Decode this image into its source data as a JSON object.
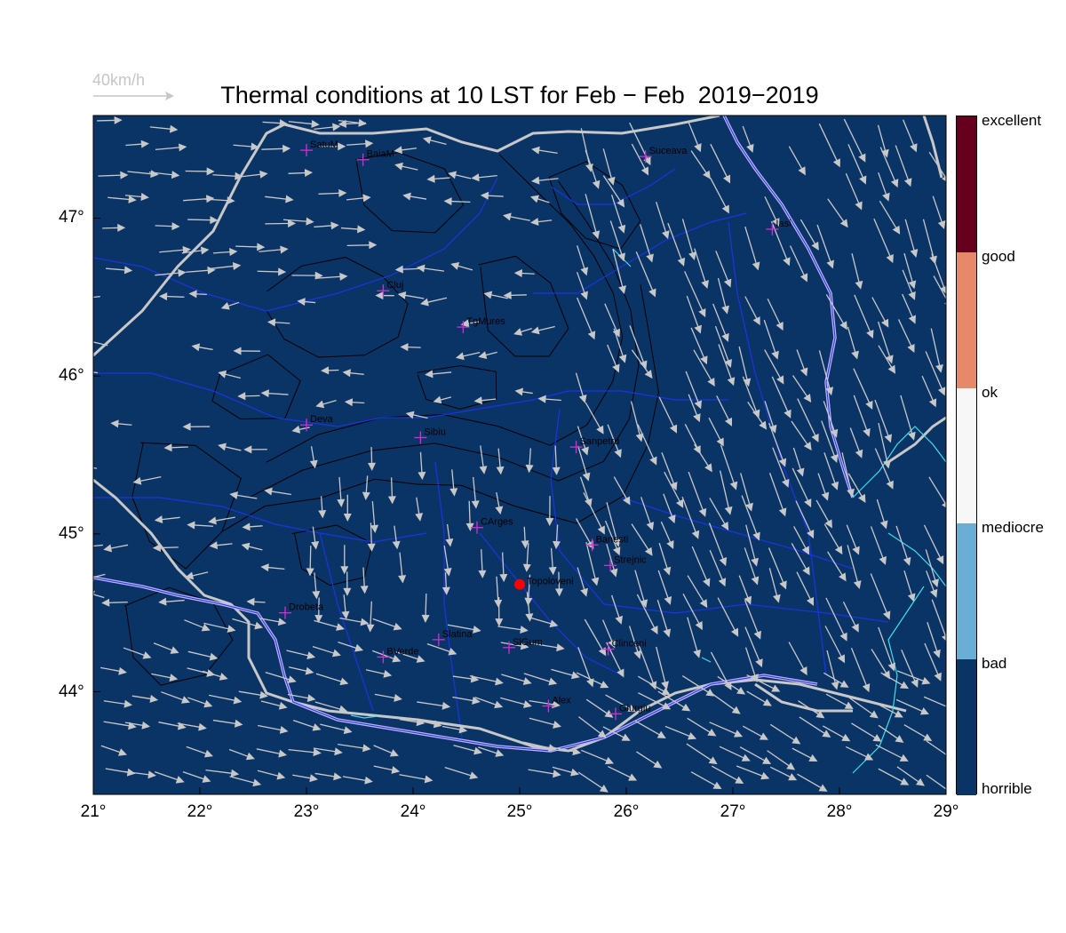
{
  "title": "Thermal conditions at 10 LST for Feb − Feb  2019−2019",
  "scale_label": "40km/h",
  "colors": {
    "background": "#0b3466",
    "rivers": "#1a34e0",
    "borders": "#c8c8c8",
    "contours": "#000000",
    "lakes": "#3ee0ee",
    "danube": "#c0b0ff",
    "wind_arrows": "#c8c8c8",
    "city_marker": "#cc33cc",
    "highlight": "#ff0000"
  },
  "map": {
    "lon_range": [
      21,
      29
    ],
    "lat_range": [
      43.35,
      47.65
    ],
    "lon_ticks": [
      "21°",
      "22°",
      "23°",
      "24°",
      "25°",
      "26°",
      "27°",
      "28°",
      "29°"
    ],
    "lat_ticks": [
      "44°",
      "45°",
      "46°",
      "47°"
    ],
    "cities": [
      {
        "name": "SatuM",
        "lon": 23.0,
        "lat": 47.43
      },
      {
        "name": "BaiaM",
        "lon": 23.53,
        "lat": 47.37
      },
      {
        "name": "Suceava",
        "lon": 26.18,
        "lat": 47.39
      },
      {
        "name": "Iasi",
        "lon": 27.37,
        "lat": 46.93
      },
      {
        "name": "Cluj",
        "lon": 23.72,
        "lat": 46.54
      },
      {
        "name": "TgMures",
        "lon": 24.47,
        "lat": 46.31
      },
      {
        "name": "Deva",
        "lon": 23.0,
        "lat": 45.69
      },
      {
        "name": "Sibiu",
        "lon": 24.07,
        "lat": 45.61
      },
      {
        "name": "Sanpetru",
        "lon": 25.53,
        "lat": 45.55
      },
      {
        "name": "CArges",
        "lon": 24.6,
        "lat": 45.04
      },
      {
        "name": "Banesti",
        "lon": 25.68,
        "lat": 44.93
      },
      {
        "name": "Strejnic",
        "lon": 25.85,
        "lat": 44.8
      },
      {
        "name": "Drobeta",
        "lon": 22.8,
        "lat": 44.5
      },
      {
        "name": "Slatina",
        "lon": 24.24,
        "lat": 44.33
      },
      {
        "name": "SlGum",
        "lon": 24.9,
        "lat": 44.28
      },
      {
        "name": "Clinceni",
        "lon": 25.83,
        "lat": 44.27
      },
      {
        "name": "BVerde",
        "lon": 23.72,
        "lat": 44.22
      },
      {
        "name": "Alex",
        "lon": 25.27,
        "lat": 43.91
      },
      {
        "name": "Giurgiu",
        "lon": 25.9,
        "lat": 43.86
      }
    ],
    "highlight": {
      "name": "Topoloveni",
      "lon": 25.0,
      "lat": 44.68
    }
  },
  "legend": {
    "categories": [
      {
        "label": "horrible",
        "color": "#0b3466"
      },
      {
        "label": "bad",
        "color": "#6aadd5"
      },
      {
        "label": "mediocre",
        "color": "#f7f7f7"
      },
      {
        "label": "ok",
        "color": "#e5896a"
      },
      {
        "label": "good",
        "color": "#67001f"
      },
      {
        "label": "excellent",
        "color": "#67001f"
      }
    ]
  }
}
